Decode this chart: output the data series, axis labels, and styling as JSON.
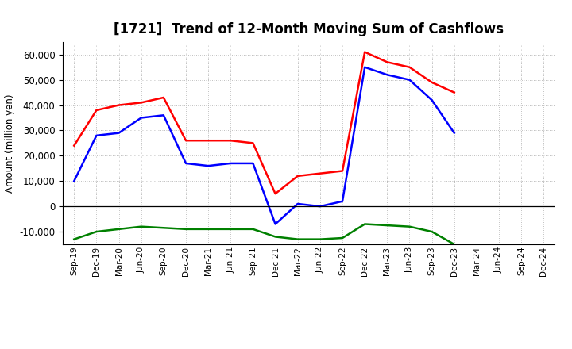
{
  "title": "[1721]  Trend of 12-Month Moving Sum of Cashflows",
  "ylabel": "Amount (million yen)",
  "xlabels": [
    "Sep-19",
    "Dec-19",
    "Mar-20",
    "Jun-20",
    "Sep-20",
    "Dec-20",
    "Mar-21",
    "Jun-21",
    "Sep-21",
    "Dec-21",
    "Mar-22",
    "Jun-22",
    "Sep-22",
    "Dec-22",
    "Mar-23",
    "Jun-23",
    "Sep-23",
    "Dec-23",
    "Mar-24",
    "Jun-24",
    "Sep-24",
    "Dec-24"
  ],
  "operating": [
    24000,
    38000,
    40000,
    41000,
    43000,
    26000,
    26000,
    26000,
    25000,
    5000,
    12000,
    13000,
    14000,
    61000,
    57000,
    55000,
    49000,
    45000,
    null,
    null,
    null,
    null
  ],
  "investing": [
    -13000,
    -10000,
    -9000,
    -8000,
    -8500,
    -9000,
    -9000,
    -9000,
    -9000,
    -12000,
    -13000,
    -13000,
    -12500,
    -7000,
    -7500,
    -8000,
    -10000,
    -15000,
    null,
    null,
    null,
    null
  ],
  "free": [
    10000,
    28000,
    29000,
    35000,
    36000,
    17000,
    16000,
    17000,
    17000,
    -7000,
    1000,
    0,
    2000,
    55000,
    52000,
    50000,
    42000,
    29000,
    null,
    null,
    null,
    null
  ],
  "ylim": [
    -15000,
    65000
  ],
  "yticks": [
    -10000,
    0,
    10000,
    20000,
    30000,
    40000,
    50000,
    60000
  ],
  "operating_color": "#ff0000",
  "investing_color": "#008000",
  "free_color": "#0000ff",
  "background_color": "#ffffff",
  "grid_color": "#aaaaaa"
}
